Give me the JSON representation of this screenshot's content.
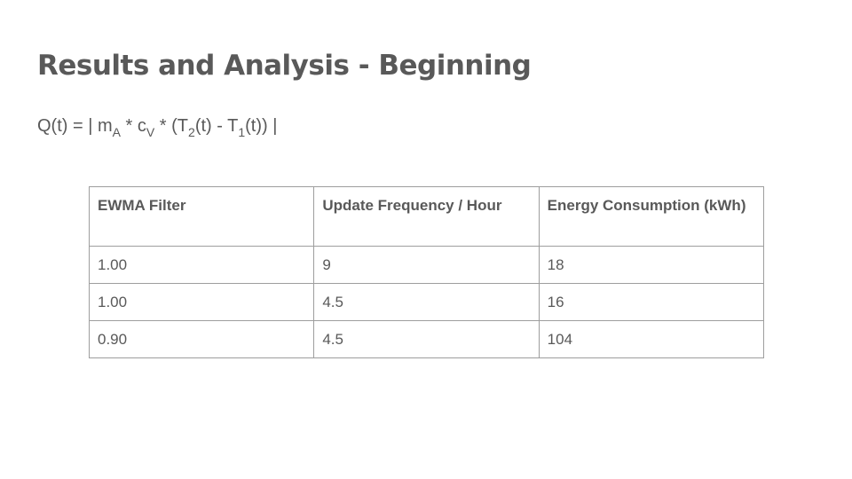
{
  "slide": {
    "title": "Results and Analysis - Beginning"
  },
  "formula": {
    "part1": "Q(t) = | m",
    "sub1": "A",
    "part2": " * c",
    "sub2": "V",
    "part3": " * (T",
    "sub3": "2",
    "part4": "(t) - T",
    "sub4": "1",
    "part5": "(t)) |"
  },
  "table": {
    "headers": [
      "EWMA Filter",
      "Update Frequency / Hour",
      "Energy Consumption (kWh)"
    ],
    "rows": [
      [
        "1.00",
        "9",
        "18"
      ],
      [
        "1.00",
        "4.5",
        "16"
      ],
      [
        "0.90",
        "4.5",
        "104"
      ]
    ]
  }
}
